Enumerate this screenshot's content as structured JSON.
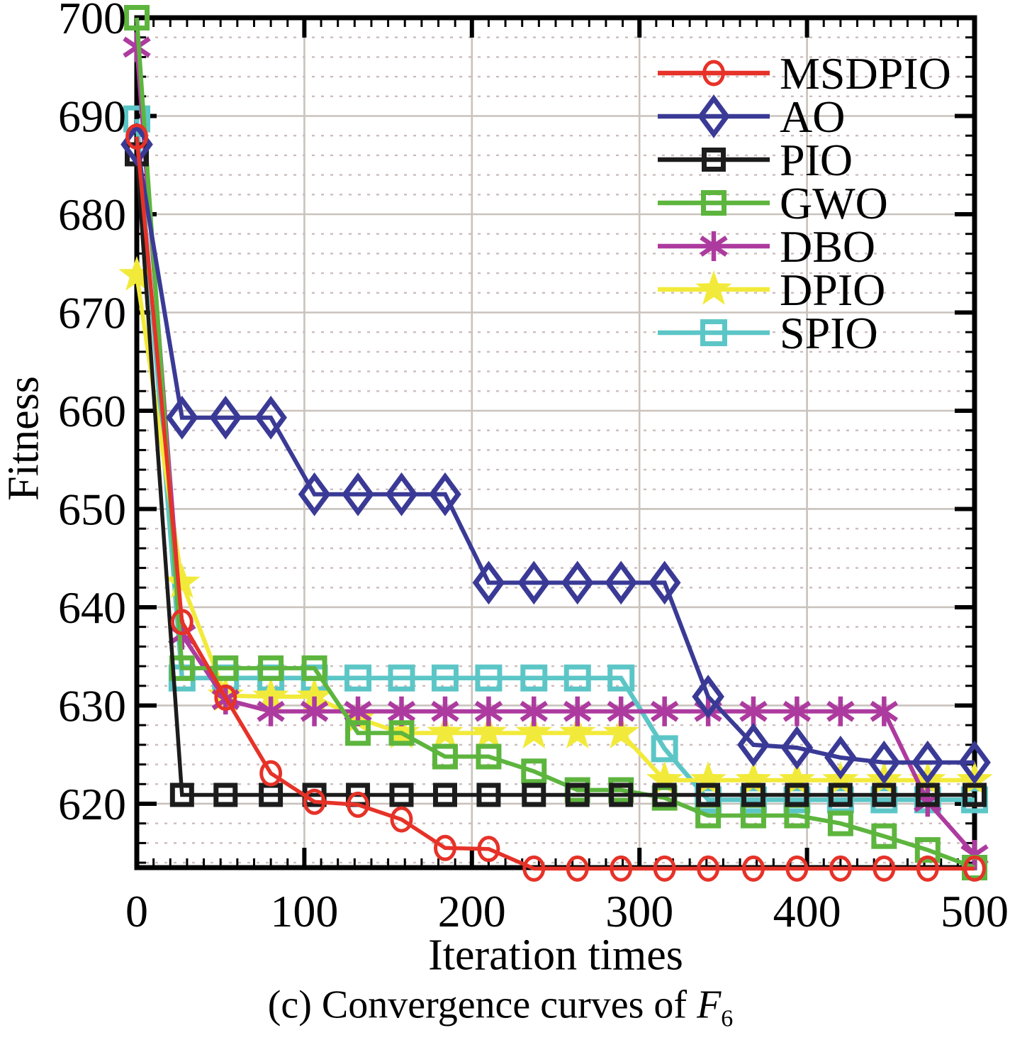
{
  "chart_data": {
    "type": "line",
    "title": "",
    "xlabel": "Iteration times",
    "ylabel": "Fitness",
    "caption_prefix": "(c) Convergence curves of ",
    "caption_math": "F",
    "caption_sub": "6",
    "xlim": [
      0,
      500
    ],
    "ylim": [
      613.5,
      700
    ],
    "xticks": [
      0,
      100,
      200,
      300,
      400,
      500
    ],
    "yticks": [
      620,
      630,
      640,
      650,
      660,
      670,
      680,
      690,
      700
    ],
    "x_minor_step": 10,
    "y_minor_step": 2,
    "grid": {
      "major": true,
      "minor_horizontal_dotted": true,
      "vertical_major": true,
      "major_color": "#c9c2bd",
      "minor_color": "#cdbcbc"
    },
    "legend_position": "top-right-inside",
    "x": [
      0,
      27,
      53,
      80,
      106,
      132,
      158,
      184,
      210,
      237,
      263,
      289,
      315,
      341,
      368,
      394,
      420,
      446,
      472,
      500
    ],
    "series": [
      {
        "name": "MSDPIO",
        "color": "#e63228",
        "marker": "circle",
        "marker_size": 16,
        "line_width": 5.5,
        "values": [
          687.9,
          638.5,
          630.8,
          623.1,
          620.2,
          619.9,
          618.4,
          615.5,
          615.4,
          613.4,
          613.4,
          613.4,
          613.4,
          613.4,
          613.4,
          613.4,
          613.4,
          613.4,
          613.4,
          613.4
        ]
      },
      {
        "name": "AO",
        "color": "#3a3a96",
        "marker": "diamond",
        "marker_size": 25,
        "line_width": 6,
        "values": [
          687.1,
          659.3,
          659.3,
          659.3,
          651.5,
          651.5,
          651.5,
          651.5,
          642.5,
          642.5,
          642.5,
          642.5,
          642.5,
          630.9,
          626.0,
          625.7,
          624.7,
          624.2,
          624.2,
          624.2
        ]
      },
      {
        "name": "PIO",
        "color": "#1c1c1c",
        "marker": "square",
        "marker_size": 27,
        "line_width": 5.5,
        "values": [
          686.1,
          620.9,
          620.9,
          620.9,
          620.9,
          620.9,
          620.9,
          620.9,
          620.9,
          620.9,
          620.9,
          620.9,
          620.9,
          620.9,
          620.9,
          620.9,
          620.9,
          620.9,
          620.9,
          620.9
        ]
      },
      {
        "name": "GWO",
        "color": "#5db53e",
        "marker": "square",
        "marker_size": 29,
        "line_width": 6,
        "values": [
          700.0,
          633.8,
          633.8,
          633.8,
          633.8,
          627.2,
          627.2,
          624.8,
          624.8,
          623.3,
          621.4,
          621.4,
          620.6,
          618.8,
          618.8,
          618.8,
          618.0,
          616.7,
          615.3,
          613.5
        ]
      },
      {
        "name": "DBO",
        "color": "#ad3b9f",
        "marker": "asterisk",
        "marker_size": 21,
        "line_width": 6,
        "values": [
          697.0,
          637.2,
          630.6,
          629.4,
          629.4,
          629.4,
          629.4,
          629.4,
          629.4,
          629.4,
          629.4,
          629.4,
          629.4,
          629.4,
          629.4,
          629.4,
          629.4,
          629.4,
          620.2,
          614.8
        ]
      },
      {
        "name": "DPIO",
        "color": "#f2ea3a",
        "marker": "star",
        "marker_size": 27,
        "line_width": 6,
        "values": [
          673.8,
          642.5,
          631.0,
          630.9,
          630.9,
          628.7,
          627.2,
          627.2,
          627.2,
          627.2,
          627.2,
          627.2,
          622.4,
          622.4,
          622.4,
          622.4,
          622.4,
          622.4,
          622.4,
          622.4
        ]
      },
      {
        "name": "SPIO",
        "color": "#5cc6c7",
        "marker": "square",
        "marker_size": 31,
        "line_width": 6.5,
        "values": [
          689.7,
          632.8,
          632.8,
          632.8,
          632.8,
          632.8,
          632.8,
          632.8,
          632.8,
          632.8,
          632.8,
          632.8,
          625.6,
          620.4,
          620.4,
          620.4,
          620.4,
          620.4,
          620.4,
          620.4
        ]
      }
    ]
  }
}
